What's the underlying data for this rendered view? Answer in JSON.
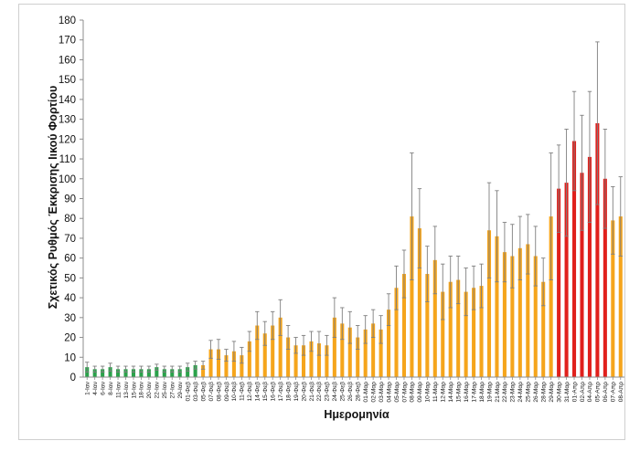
{
  "chart_data": {
    "type": "bar",
    "title": "",
    "xlabel": "Ημερομηνία",
    "ylabel": "Σχετικός Ρυθμός Έκκρισης Ιικού Φορτίου",
    "ylim": [
      0,
      180
    ],
    "ytick_step": 10,
    "grid": false,
    "legend": "none",
    "colors": {
      "green": "#2aa24a",
      "orange": "#f5a51c",
      "red": "#e0201c",
      "error": "#7f7f7f"
    },
    "categories": [
      "1-Ιαν",
      "4-Ιαν",
      "6-Ιαν",
      "8-Ιαν",
      "11-Ιαν",
      "13-Ιαν",
      "15-Ιαν",
      "18-Ιαν",
      "20-Ιαν",
      "22-Ιαν",
      "25-Ιαν",
      "27-Ιαν",
      "29-Ιαν",
      "01-Φεβ",
      "03-Φεβ",
      "05-Φεβ",
      "07-Φεβ",
      "08-Φεβ",
      "09-Φεβ",
      "10-Φεβ",
      "11-Φεβ",
      "12-Φεβ",
      "14-Φεβ",
      "15-Φεβ",
      "16-Φεβ",
      "17-Φεβ",
      "18-Φεβ",
      "19-Φεβ",
      "20-Φεβ",
      "21-Φεβ",
      "22-Φεβ",
      "23-Φεβ",
      "24-Φεβ",
      "25-Φεβ",
      "26-Φεβ",
      "28-Φεβ",
      "01-Μαρ",
      "02-Μαρ",
      "03-Μαρ",
      "04-Μαρ",
      "05-Μαρ",
      "07-Μαρ",
      "08-Μαρ",
      "09-Μαρ",
      "10-Μαρ",
      "11-Μαρ",
      "12-Μαρ",
      "14-Μαρ",
      "15-Μαρ",
      "16-Μαρ",
      "17-Μαρ",
      "18-Μαρ",
      "19-Μαρ",
      "21-Μαρ",
      "22-Μαρ",
      "23-Μαρ",
      "24-Μαρ",
      "25-Μαρ",
      "26-Μαρ",
      "28-Μαρ",
      "29-Μαρ",
      "30-Μαρ",
      "31-Μαρ",
      "01-Απρ",
      "02-Απρ",
      "04-Απρ",
      "05-Απρ",
      "06-Απρ",
      "07-Απρ",
      "08-Απρ"
    ],
    "values": [
      5,
      4,
      4,
      5,
      4,
      4,
      4,
      4,
      4,
      5,
      4,
      4,
      4,
      5,
      6,
      6,
      14,
      14,
      11,
      13,
      11,
      18,
      26,
      22,
      26,
      30,
      20,
      16,
      16,
      18,
      17,
      16,
      30,
      27,
      25,
      20,
      24,
      27,
      24,
      34,
      45,
      52,
      81,
      75,
      52,
      59,
      43,
      48,
      49,
      43,
      45,
      46,
      74,
      71,
      63,
      61,
      65,
      67,
      61,
      48,
      81,
      95,
      98,
      119,
      103,
      111,
      128,
      100,
      79,
      81
    ],
    "error": [
      2.5,
      1.5,
      1.5,
      2,
      1.5,
      1.5,
      1.5,
      1.5,
      1.5,
      1.5,
      1.5,
      1.5,
      1.5,
      2,
      2,
      2,
      4.5,
      5,
      3,
      5,
      4,
      5,
      7,
      6,
      7,
      9,
      6,
      4,
      5,
      5,
      6,
      5,
      10,
      8,
      8,
      6,
      7,
      7,
      7,
      8,
      11,
      12,
      32,
      20,
      14,
      17,
      14,
      13,
      12,
      12,
      11,
      11,
      24,
      23,
      15,
      16,
      16,
      15,
      15,
      12,
      32,
      22,
      27,
      25,
      29,
      33,
      41,
      25,
      17,
      20
    ],
    "bar_colors": [
      "green",
      "green",
      "green",
      "green",
      "green",
      "green",
      "green",
      "green",
      "green",
      "green",
      "green",
      "green",
      "green",
      "green",
      "green",
      "orange",
      "orange",
      "orange",
      "orange",
      "orange",
      "orange",
      "orange",
      "orange",
      "orange",
      "orange",
      "orange",
      "orange",
      "orange",
      "orange",
      "orange",
      "orange",
      "orange",
      "orange",
      "orange",
      "orange",
      "orange",
      "orange",
      "orange",
      "orange",
      "orange",
      "orange",
      "orange",
      "orange",
      "orange",
      "orange",
      "orange",
      "orange",
      "orange",
      "orange",
      "orange",
      "orange",
      "orange",
      "orange",
      "orange",
      "orange",
      "orange",
      "orange",
      "orange",
      "orange",
      "orange",
      "orange",
      "red",
      "red",
      "red",
      "red",
      "red",
      "red",
      "red",
      "orange",
      "orange"
    ]
  }
}
